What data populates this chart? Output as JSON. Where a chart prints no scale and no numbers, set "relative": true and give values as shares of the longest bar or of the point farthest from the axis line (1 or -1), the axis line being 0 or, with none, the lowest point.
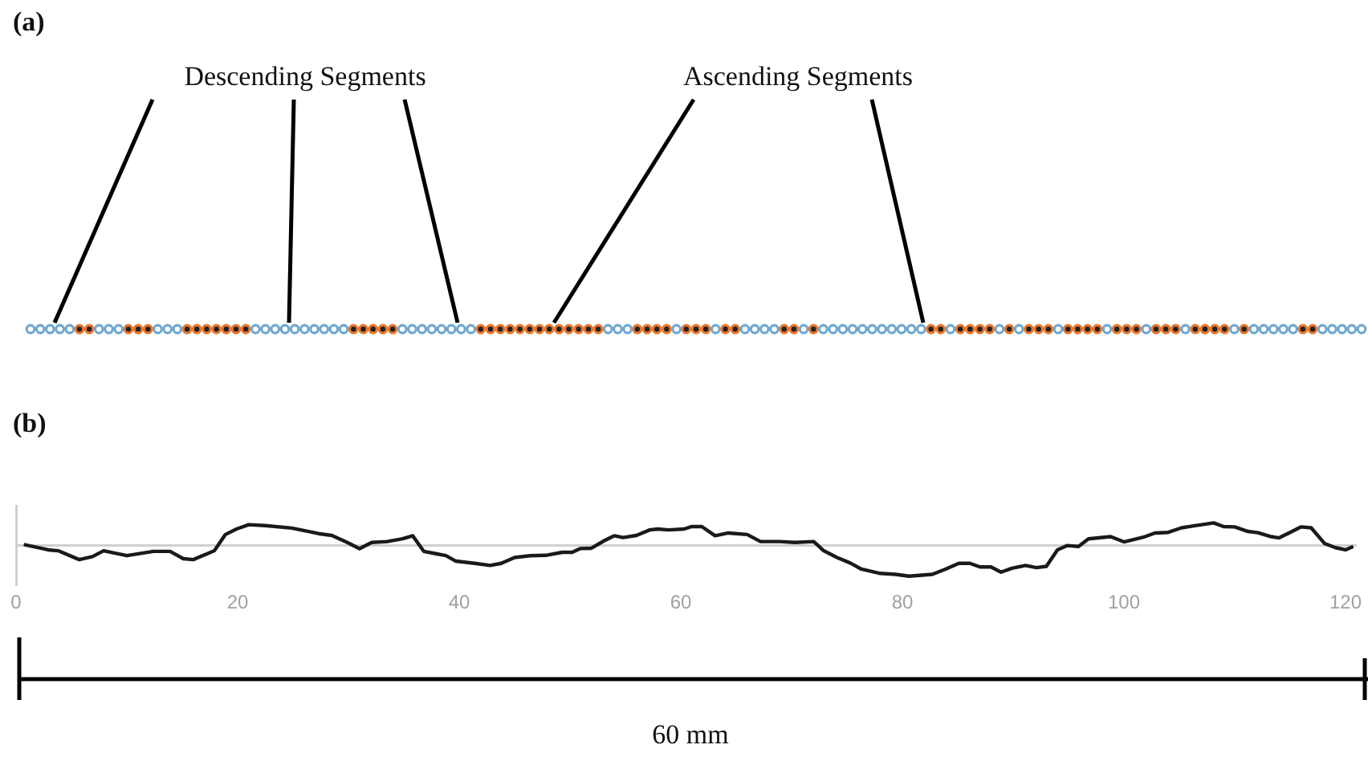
{
  "chart_data": [
    {
      "type": "other",
      "title": "(a)",
      "annotations": [
        "Descending Segments",
        "Ascending Segments"
      ]
    },
    {
      "type": "line",
      "title": "(b)",
      "annotations": [
        "60 mm"
      ],
      "relative": true,
      "color": "#1a1a1a",
      "xlim": [
        0,
        121
      ],
      "xticks": [
        0,
        20,
        40,
        60,
        80,
        100,
        120
      ],
      "x": [
        0.7,
        2.9,
        3.8,
        5.7,
        6.9,
        7.9,
        10,
        12.4,
        13.9,
        15.1,
        16,
        17.9,
        18.9,
        19.9,
        21,
        22.5,
        24.9,
        27.3,
        28.5,
        29.9,
        31,
        32.1,
        33.5,
        34.9,
        35.8,
        36.8,
        37.8,
        38.8,
        39.7,
        41.4,
        42.8,
        43.8,
        45,
        46.4,
        47.8,
        49.3,
        50.2,
        50.9,
        51.9,
        53.1,
        54,
        54.8,
        56,
        57.2,
        57.9,
        58.9,
        60.3,
        61,
        61.9,
        63.1,
        64.3,
        66,
        67.2,
        68.9,
        70.3,
        72,
        72.9,
        74.1,
        75.3,
        76.3,
        78,
        79.4,
        80.6,
        82.7,
        83.9,
        85.1,
        86.1,
        87,
        88,
        88.9,
        89.9,
        91.1,
        92.1,
        93,
        94,
        94.9,
        95.9,
        96.8,
        98.8,
        100,
        101.9,
        102.8,
        104,
        105.2,
        106.4,
        108.1,
        109,
        110,
        111.2,
        112.1,
        113.3,
        114,
        115,
        116,
        116.9,
        118.1,
        119.1,
        120,
        120.7
      ],
      "values": [
        0.03,
        -0.14,
        -0.17,
        -0.46,
        -0.36,
        -0.17,
        -0.33,
        -0.19,
        -0.19,
        -0.43,
        -0.46,
        -0.17,
        0.36,
        0.54,
        0.68,
        0.65,
        0.57,
        0.39,
        0.33,
        0.1,
        -0.1,
        0.1,
        0.13,
        0.22,
        0.32,
        -0.19,
        -0.26,
        -0.33,
        -0.51,
        -0.58,
        -0.65,
        -0.58,
        -0.39,
        -0.33,
        -0.32,
        -0.22,
        -0.22,
        -0.1,
        -0.09,
        0.16,
        0.32,
        0.26,
        0.33,
        0.51,
        0.54,
        0.51,
        0.54,
        0.62,
        0.62,
        0.32,
        0.41,
        0.36,
        0.13,
        0.13,
        0.1,
        0.13,
        -0.17,
        -0.39,
        -0.57,
        -0.77,
        -0.91,
        -0.94,
        -1,
        -0.94,
        -0.77,
        -0.58,
        -0.58,
        -0.7,
        -0.7,
        -0.87,
        -0.74,
        -0.65,
        -0.72,
        -0.68,
        -0.14,
        0,
        -0.03,
        0.22,
        0.29,
        0.12,
        0.29,
        0.41,
        0.43,
        0.58,
        0.65,
        0.74,
        0.62,
        0.61,
        0.46,
        0.42,
        0.29,
        0.25,
        0.43,
        0.61,
        0.58,
        0.07,
        -0.07,
        -0.14,
        -0.03
      ]
    }
  ]
}
